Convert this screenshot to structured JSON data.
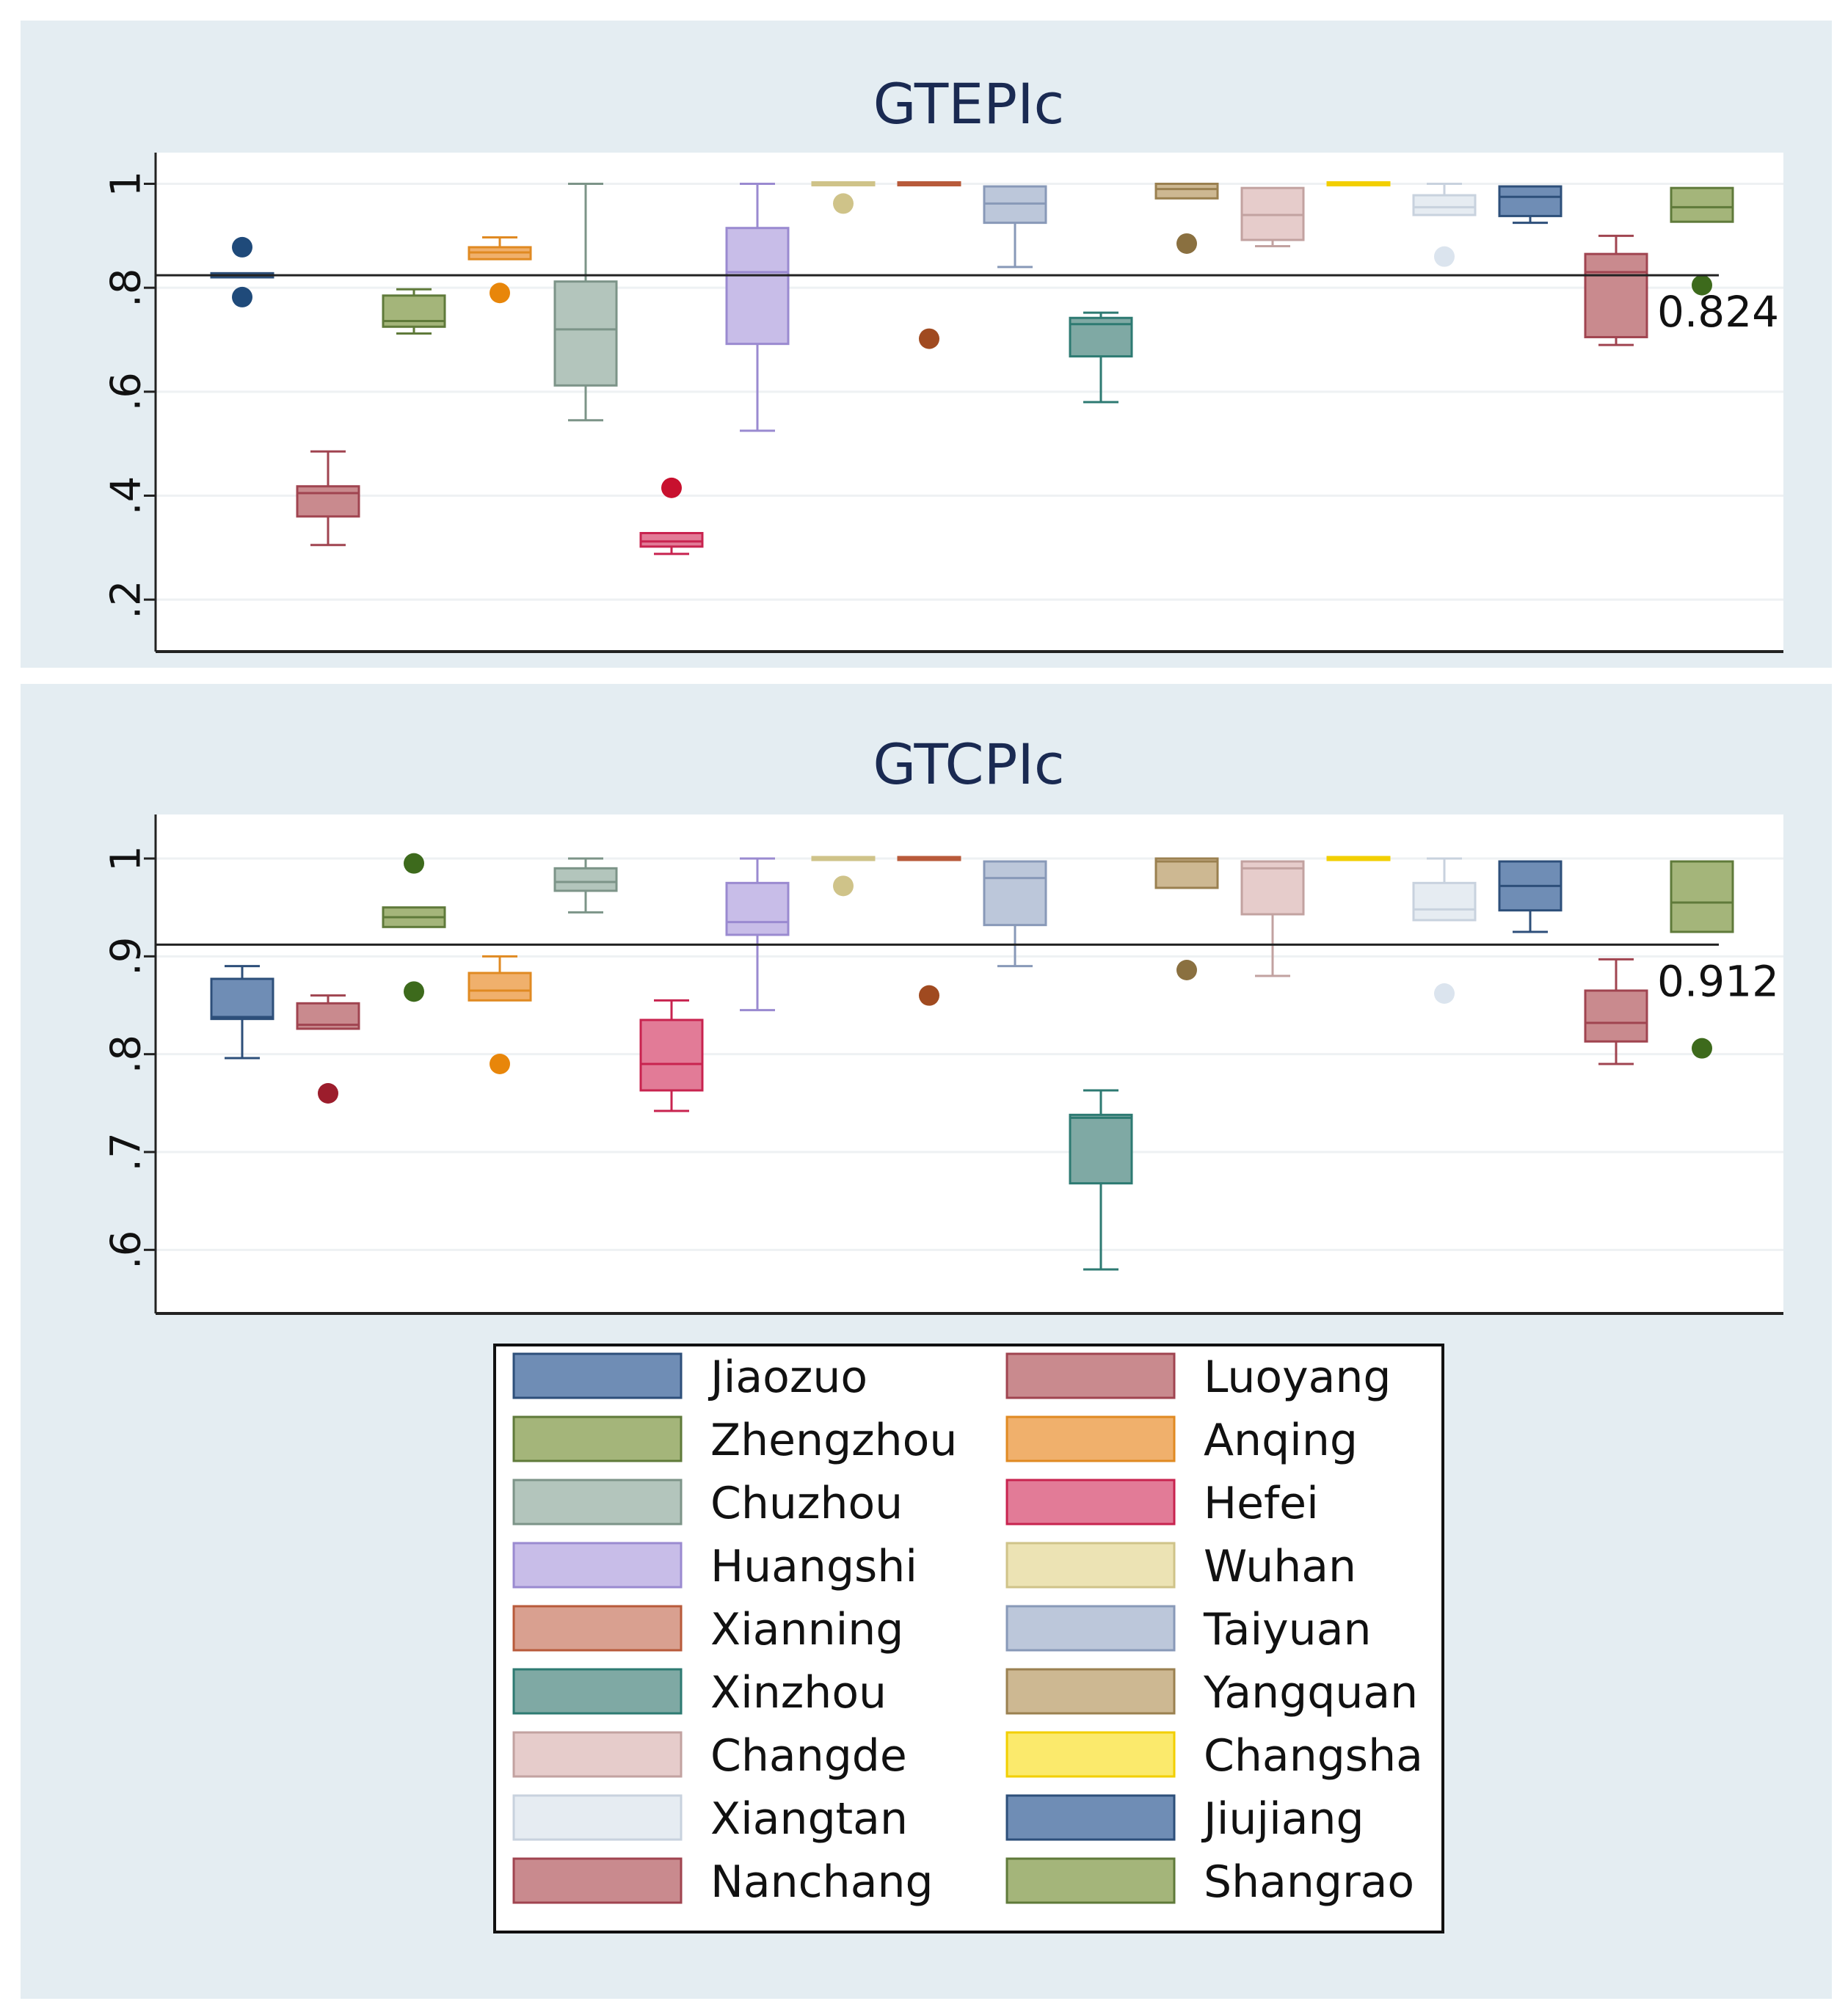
{
  "chart_data": [
    {
      "type": "box",
      "title": "GTEPIc",
      "ylim": [
        0.1,
        1.06
      ],
      "yticks": [
        0.2,
        0.4,
        0.6,
        0.8,
        1.0
      ],
      "ytick_labels": [
        ".2",
        ".4",
        ".6",
        ".8",
        "1"
      ],
      "reference_line": {
        "value": 0.824,
        "label": "0.824"
      },
      "series": [
        {
          "name": "Jiaozuo",
          "q1": 0.82,
          "median": 0.823,
          "q3": 0.828,
          "lower": 0.82,
          "upper": 0.828,
          "outliers": [
            0.878,
            0.782
          ]
        },
        {
          "name": "Luoyang",
          "q1": 0.36,
          "median": 0.405,
          "q3": 0.418,
          "lower": 0.305,
          "upper": 0.485,
          "outliers": []
        },
        {
          "name": "Zhengzhou",
          "q1": 0.725,
          "median": 0.736,
          "q3": 0.785,
          "lower": 0.712,
          "upper": 0.797,
          "outliers": []
        },
        {
          "name": "Anqing",
          "q1": 0.855,
          "median": 0.868,
          "q3": 0.878,
          "lower": 0.855,
          "upper": 0.897,
          "outliers": [
            0.79
          ]
        },
        {
          "name": "Chuzhou",
          "q1": 0.612,
          "median": 0.72,
          "q3": 0.812,
          "lower": 0.545,
          "upper": 1.0,
          "outliers": []
        },
        {
          "name": "Hefei",
          "q1": 0.302,
          "median": 0.312,
          "q3": 0.328,
          "lower": 0.288,
          "upper": 0.328,
          "outliers": [
            0.415
          ]
        },
        {
          "name": "Huangshi",
          "q1": 0.692,
          "median": 0.83,
          "q3": 0.915,
          "lower": 0.525,
          "upper": 1.0,
          "outliers": []
        },
        {
          "name": "Wuhan",
          "q1": 1.0,
          "median": 1.0,
          "q3": 1.0,
          "lower": 1.0,
          "upper": 1.0,
          "outliers": [
            0.962
          ]
        },
        {
          "name": "Xianning",
          "q1": 1.0,
          "median": 1.0,
          "q3": 1.0,
          "lower": 1.0,
          "upper": 1.0,
          "outliers": [
            0.702
          ]
        },
        {
          "name": "Taiyuan",
          "q1": 0.925,
          "median": 0.962,
          "q3": 0.995,
          "lower": 0.84,
          "upper": 0.995,
          "outliers": []
        },
        {
          "name": "Xinzhou",
          "q1": 0.668,
          "median": 0.73,
          "q3": 0.742,
          "lower": 0.58,
          "upper": 0.752,
          "outliers": []
        },
        {
          "name": "Yangquan",
          "q1": 0.972,
          "median": 0.99,
          "q3": 1.0,
          "lower": 0.972,
          "upper": 1.0,
          "outliers": [
            0.885
          ]
        },
        {
          "name": "Changde",
          "q1": 0.892,
          "median": 0.94,
          "q3": 0.992,
          "lower": 0.88,
          "upper": 0.992,
          "outliers": []
        },
        {
          "name": "Changsha",
          "q1": 1.0,
          "median": 1.0,
          "q3": 1.0,
          "lower": 1.0,
          "upper": 1.0,
          "outliers": []
        },
        {
          "name": "Xiangtan",
          "q1": 0.94,
          "median": 0.955,
          "q3": 0.978,
          "lower": 0.94,
          "upper": 1.0,
          "outliers": [
            0.86
          ]
        },
        {
          "name": "Jiujiang",
          "q1": 0.938,
          "median": 0.975,
          "q3": 0.995,
          "lower": 0.925,
          "upper": 0.995,
          "outliers": []
        },
        {
          "name": "Nanchang",
          "q1": 0.705,
          "median": 0.83,
          "q3": 0.865,
          "lower": 0.69,
          "upper": 0.9,
          "outliers": []
        },
        {
          "name": "Shangrao",
          "q1": 0.927,
          "median": 0.955,
          "q3": 0.992,
          "lower": 0.927,
          "upper": 0.992,
          "outliers": [
            0.805
          ]
        }
      ]
    },
    {
      "type": "box",
      "title": "GTCPIc",
      "ylim": [
        0.535,
        1.045
      ],
      "yticks": [
        0.6,
        0.7,
        0.8,
        0.9,
        1.0
      ],
      "ytick_labels": [
        ".6",
        ".7",
        ".8",
        ".9",
        "1"
      ],
      "reference_line": {
        "value": 0.912,
        "label": "0.912"
      },
      "series": [
        {
          "name": "Jiaozuo",
          "q1": 0.836,
          "median": 0.838,
          "q3": 0.877,
          "lower": 0.796,
          "upper": 0.89,
          "outliers": []
        },
        {
          "name": "Luoyang",
          "q1": 0.826,
          "median": 0.83,
          "q3": 0.852,
          "lower": 0.826,
          "upper": 0.86,
          "outliers": [
            0.76
          ]
        },
        {
          "name": "Zhengzhou",
          "q1": 0.93,
          "median": 0.94,
          "q3": 0.95,
          "lower": 0.93,
          "upper": 0.95,
          "outliers": [
            0.995,
            0.864
          ]
        },
        {
          "name": "Anqing",
          "q1": 0.855,
          "median": 0.865,
          "q3": 0.883,
          "lower": 0.855,
          "upper": 0.9,
          "outliers": [
            0.79
          ]
        },
        {
          "name": "Chuzhou",
          "q1": 0.967,
          "median": 0.976,
          "q3": 0.99,
          "lower": 0.945,
          "upper": 1.0,
          "outliers": []
        },
        {
          "name": "Hefei",
          "q1": 0.763,
          "median": 0.79,
          "q3": 0.835,
          "lower": 0.742,
          "upper": 0.855,
          "outliers": []
        },
        {
          "name": "Huangshi",
          "q1": 0.922,
          "median": 0.935,
          "q3": 0.975,
          "lower": 0.845,
          "upper": 1.0,
          "outliers": []
        },
        {
          "name": "Wuhan",
          "q1": 1.0,
          "median": 1.0,
          "q3": 1.0,
          "lower": 1.0,
          "upper": 1.0,
          "outliers": [
            0.972
          ]
        },
        {
          "name": "Xianning",
          "q1": 1.0,
          "median": 1.0,
          "q3": 1.0,
          "lower": 1.0,
          "upper": 1.0,
          "outliers": [
            0.86
          ]
        },
        {
          "name": "Taiyuan",
          "q1": 0.932,
          "median": 0.98,
          "q3": 0.997,
          "lower": 0.89,
          "upper": 0.997,
          "outliers": []
        },
        {
          "name": "Xinzhou",
          "q1": 0.668,
          "median": 0.735,
          "q3": 0.738,
          "lower": 0.58,
          "upper": 0.763,
          "outliers": []
        },
        {
          "name": "Yangquan",
          "q1": 0.97,
          "median": 0.997,
          "q3": 1.0,
          "lower": 0.97,
          "upper": 1.0,
          "outliers": [
            0.886
          ]
        },
        {
          "name": "Changde",
          "q1": 0.943,
          "median": 0.99,
          "q3": 0.997,
          "lower": 0.88,
          "upper": 0.997,
          "outliers": []
        },
        {
          "name": "Changsha",
          "q1": 1.0,
          "median": 1.0,
          "q3": 1.0,
          "lower": 1.0,
          "upper": 1.0,
          "outliers": []
        },
        {
          "name": "Xiangtan",
          "q1": 0.937,
          "median": 0.948,
          "q3": 0.975,
          "lower": 0.937,
          "upper": 1.0,
          "outliers": [
            0.862
          ]
        },
        {
          "name": "Jiujiang",
          "q1": 0.947,
          "median": 0.972,
          "q3": 0.997,
          "lower": 0.925,
          "upper": 0.997,
          "outliers": []
        },
        {
          "name": "Nanchang",
          "q1": 0.813,
          "median": 0.832,
          "q3": 0.865,
          "lower": 0.79,
          "upper": 0.897,
          "outliers": []
        },
        {
          "name": "Shangrao",
          "q1": 0.925,
          "median": 0.955,
          "q3": 0.997,
          "lower": 0.925,
          "upper": 0.997,
          "outliers": [
            0.806
          ]
        }
      ]
    }
  ],
  "legend": {
    "columns": 2,
    "entries": [
      {
        "name": "Jiaozuo",
        "color": "#6f8db5",
        "edge": "#2d4f7a"
      },
      {
        "name": "Luoyang",
        "color": "#c98a8e",
        "edge": "#a04450"
      },
      {
        "name": "Zhengzhou",
        "color": "#a4b57a",
        "edge": "#5f7a3a"
      },
      {
        "name": "Anqing",
        "color": "#f0b06c",
        "edge": "#e08a22"
      },
      {
        "name": "Chuzhou",
        "color": "#b3c5bc",
        "edge": "#7c9488"
      },
      {
        "name": "Hefei",
        "color": "#e27b97",
        "edge": "#c8234f"
      },
      {
        "name": "Huangshi",
        "color": "#c8bde8",
        "edge": "#9a8ad0"
      },
      {
        "name": "Wuhan",
        "color": "#ece3b4",
        "edge": "#cfc389"
      },
      {
        "name": "Xianning",
        "color": "#d9a090",
        "edge": "#b85a3a"
      },
      {
        "name": "Taiyuan",
        "color": "#bcc7da",
        "edge": "#8899b8"
      },
      {
        "name": "Xinzhou",
        "color": "#7fa9a4",
        "edge": "#2d7a72"
      },
      {
        "name": "Yangquan",
        "color": "#cdb892",
        "edge": "#9a8050"
      },
      {
        "name": "Changde",
        "color": "#e6cccb",
        "edge": "#c2a2a0"
      },
      {
        "name": "Changsha",
        "color": "#fbea6c",
        "edge": "#f2cf00"
      },
      {
        "name": "Xiangtan",
        "color": "#e6ecf2",
        "edge": "#c8d2de"
      },
      {
        "name": "Jiujiang",
        "color": "#6f8db5",
        "edge": "#2d4f7a"
      },
      {
        "name": "Nanchang",
        "color": "#c98a8e",
        "edge": "#a04450"
      },
      {
        "name": "Shangrao",
        "color": "#a4b57a",
        "edge": "#5f7a3a"
      }
    ]
  },
  "outlier_colors": {
    "Jiaozuo": "#1f4a7a",
    "Luoyang": "#9c1d2c",
    "Zhengzhou": "#3d6a1c",
    "Anqing": "#e8860a",
    "Chuzhou": "#6f8a80",
    "Hefei": "#c8102e",
    "Huangshi": "#8e7cc8",
    "Wuhan": "#cfc389",
    "Xianning": "#a04a20",
    "Taiyuan": "#8899b8",
    "Xinzhou": "#2d7a72",
    "Yangquan": "#8a7040",
    "Changde": "#c2a2a0",
    "Changsha": "#f2cf00",
    "Xiangtan": "#dbe4ee",
    "Jiujiang": "#2d4f7a",
    "Nanchang": "#a04450",
    "Shangrao": "#3d6a1c"
  }
}
